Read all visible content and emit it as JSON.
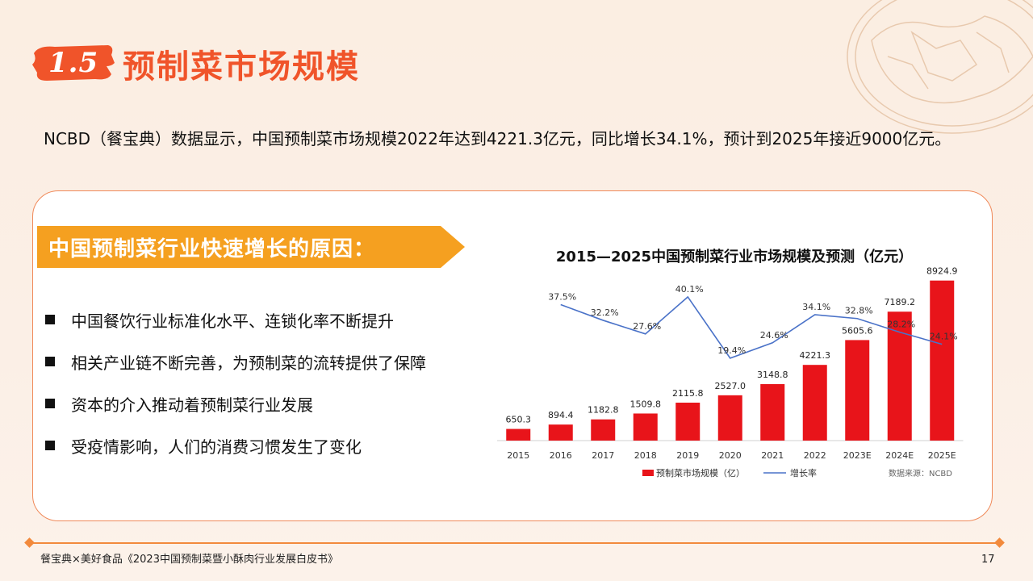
{
  "header": {
    "section_number": "1.5",
    "title": "预制菜市场规模"
  },
  "intro_text": "NCBD（餐宝典）数据显示，中国预制菜市场规模2022年达到4221.3亿元，同比增长34.1%，预计到2025年接近9000亿元。",
  "reasons": {
    "title": "中国预制菜行业快速增长的原因：",
    "items": [
      "中国餐饮行业标准化水平、连锁化率不断提升",
      "相关产业链不断完善，为预制菜的流转提供了保障",
      "资本的介入推动着预制菜行业发展",
      "受疫情影响，人们的消费习惯发生了变化"
    ]
  },
  "colors": {
    "accent": "#f0542a",
    "banner": "#f5a020",
    "bar": "#e8141a",
    "line": "#4a72c8"
  },
  "chart_data": {
    "type": "bar",
    "title": "2015—2025中国预制菜行业市场规模及预测（亿元）",
    "categories": [
      "2015",
      "2016",
      "2017",
      "2018",
      "2019",
      "2020",
      "2021",
      "2022",
      "2023E",
      "2024E",
      "2025E"
    ],
    "series": [
      {
        "name": "预制菜市场规模（亿）",
        "type": "bar",
        "values": [
          650.3,
          894.4,
          1182.8,
          1509.8,
          2115.8,
          2527.0,
          3148.8,
          4221.3,
          5605.6,
          7189.2,
          8924.9
        ],
        "labels": [
          "650.3",
          "894.4",
          "1182.8",
          "1509.8",
          "2115.8",
          "2527.0",
          "3148.8",
          "4221.3",
          "5605.6",
          "7189.2",
          "8924.9"
        ]
      },
      {
        "name": "增长率",
        "type": "line",
        "values": [
          null,
          37.5,
          32.2,
          27.6,
          40.1,
          19.4,
          24.6,
          34.1,
          32.8,
          28.2,
          24.1
        ],
        "labels": [
          "",
          "37.5%",
          "32.2%",
          "27.6%",
          "40.1%",
          "19.4%",
          "24.6%",
          "34.1%",
          "32.8%",
          "28.2%",
          "24.1%"
        ]
      }
    ],
    "legend_position": "bottom",
    "source_note": "数据来源：NCBD"
  },
  "footer": {
    "source": "餐宝典×美好食品《2023中国预制菜暨小酥肉行业发展白皮书》",
    "page_number": "17"
  }
}
